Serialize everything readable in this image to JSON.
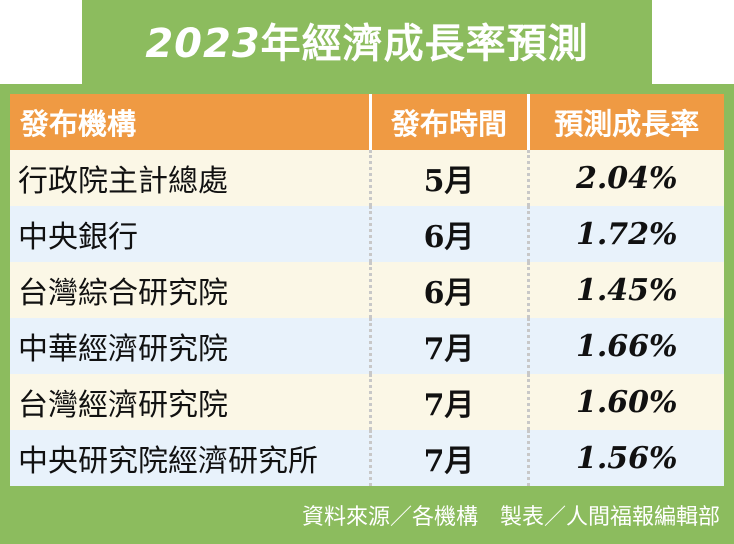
{
  "title": {
    "year": "2023",
    "rest": "年經濟成長率預測"
  },
  "table": {
    "headers": [
      "發布機構",
      "發布時間",
      "預測成長率"
    ],
    "rows": [
      {
        "org": "行政院主計總處",
        "month": "5月",
        "rate": "2.04%"
      },
      {
        "org": "中央銀行",
        "month": "6月",
        "rate": "1.72%"
      },
      {
        "org": "台灣綜合研究院",
        "month": "6月",
        "rate": "1.45%"
      },
      {
        "org": "中華經濟研究院",
        "month": "7月",
        "rate": "1.66%"
      },
      {
        "org": "台灣經濟研究院",
        "month": "7月",
        "rate": "1.60%"
      },
      {
        "org": "中央研究院經濟研究所",
        "month": "7月",
        "rate": "1.56%"
      }
    ]
  },
  "footer": "資料來源／各機構　製表／人間福報編輯部",
  "colors": {
    "frame": "#8cbc5e",
    "header": "#ef9a43",
    "row_odd": "#fbf7e6",
    "row_even": "#e8f2fb"
  }
}
